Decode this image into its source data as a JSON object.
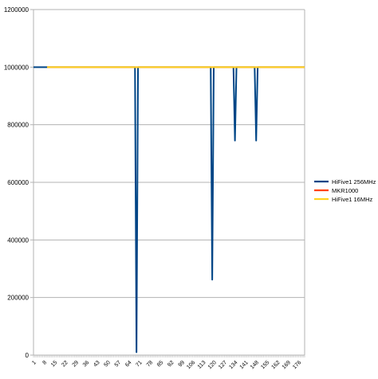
{
  "chart_data": {
    "type": "line",
    "title": "",
    "xlabel": "",
    "ylabel": "",
    "ylim": [
      0,
      1200000
    ],
    "yticks": [
      0,
      200000,
      400000,
      600000,
      800000,
      1000000,
      1200000
    ],
    "ytick_labels": [
      "0",
      "200000",
      "400000",
      "600000",
      "800000",
      "1000000",
      "1200000"
    ],
    "x_range": [
      1,
      180
    ],
    "xticks": [
      1,
      8,
      15,
      22,
      29,
      36,
      43,
      50,
      57,
      64,
      71,
      78,
      85,
      92,
      99,
      106,
      113,
      120,
      127,
      134,
      141,
      148,
      155,
      162,
      169,
      176
    ],
    "xtick_labels": [
      "1",
      "8",
      "15",
      "22",
      "29",
      "36",
      "43",
      "50",
      "57",
      "64",
      "71",
      "78",
      "85",
      "92",
      "99",
      "106",
      "113",
      "120",
      "127",
      "134",
      "141",
      "148",
      "155",
      "162",
      "169",
      "176"
    ],
    "grid": true,
    "legend_position": "right",
    "series": [
      {
        "name": "HiFive1 256MHz",
        "color": "#004586",
        "points": [
          [
            1,
            1000000
          ],
          [
            68,
            1000000
          ],
          [
            69,
            10000
          ],
          [
            70,
            1000000
          ],
          [
            118,
            1000000
          ],
          [
            119,
            262000
          ],
          [
            120,
            1000000
          ],
          [
            133,
            1000000
          ],
          [
            134,
            745000
          ],
          [
            135,
            1000000
          ],
          [
            147,
            1000000
          ],
          [
            148,
            745000
          ],
          [
            149,
            1000000
          ],
          [
            180,
            1000000
          ]
        ]
      },
      {
        "name": "MKR1000",
        "color": "#ff420e",
        "points": [
          [
            10,
            1000000
          ],
          [
            180,
            1000000
          ]
        ]
      },
      {
        "name": "HiFive1 16MHz",
        "color": "#ffd320",
        "points": [
          [
            10,
            1000000
          ],
          [
            180,
            1000000
          ]
        ]
      }
    ]
  }
}
